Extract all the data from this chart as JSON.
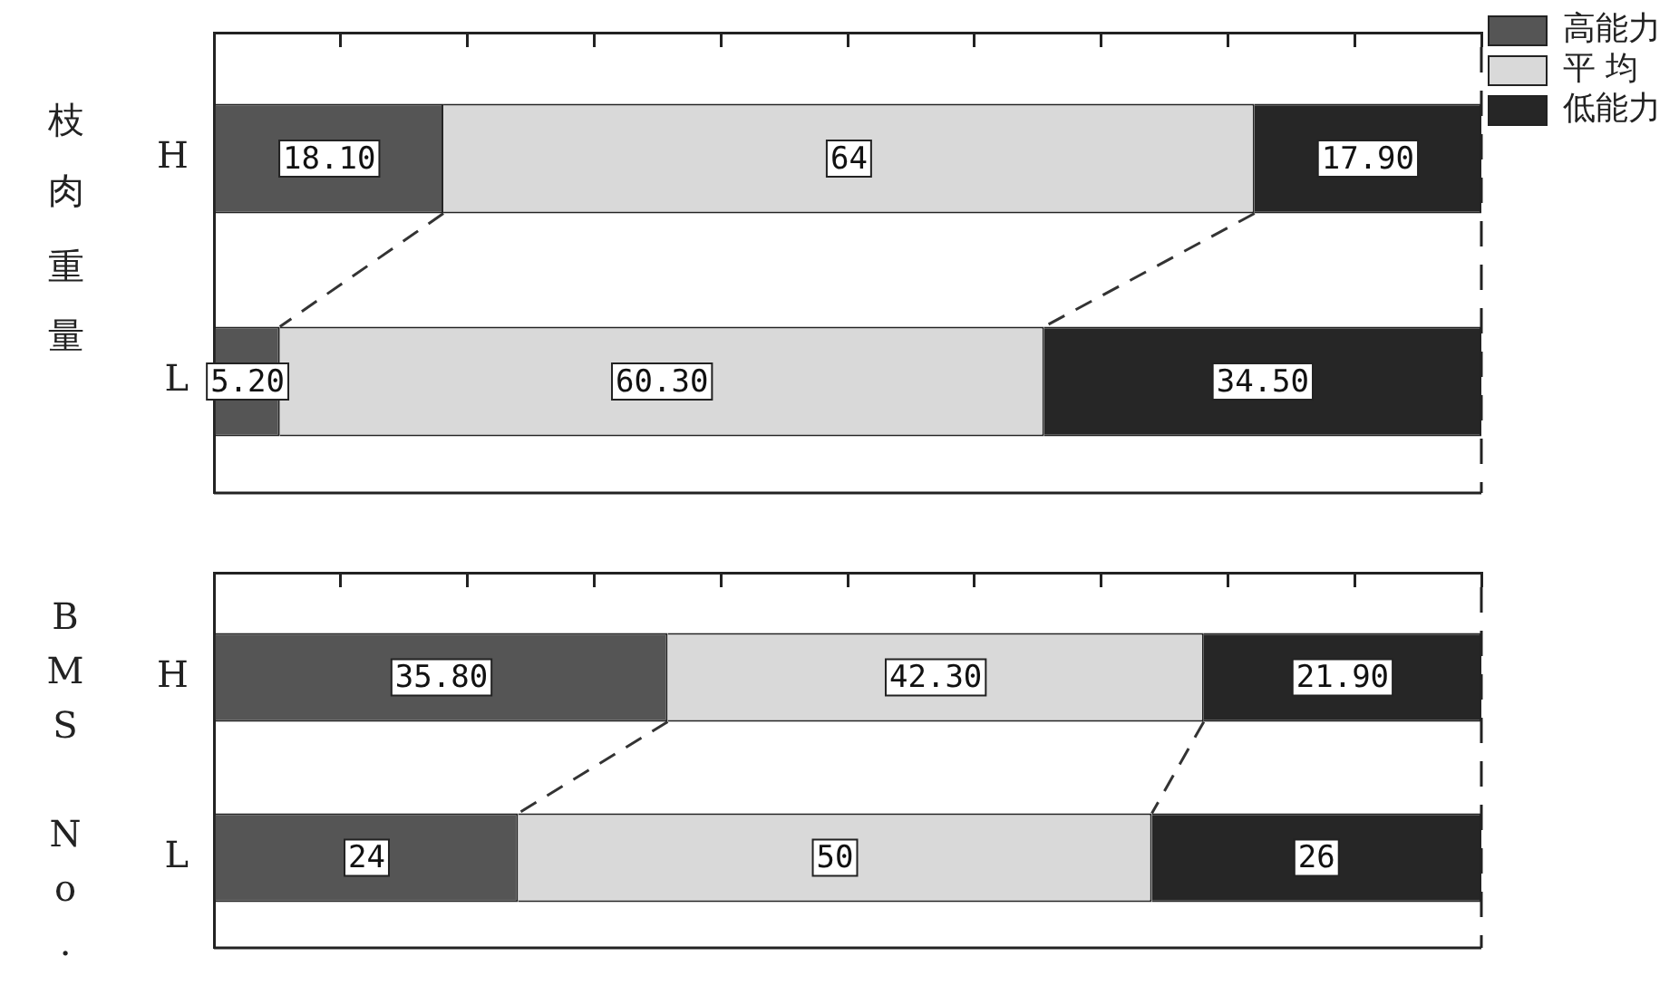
{
  "chart_data": [
    {
      "type": "bar",
      "orientation": "horizontal",
      "stacked": true,
      "ylabel": "枝肉重量",
      "categories": [
        "H",
        "L"
      ],
      "xlim": [
        0,
        100
      ],
      "xticks": [
        {
          "value": 0,
          "label": null
        },
        {
          "value": 10,
          "label": null
        },
        {
          "value": 20,
          "label": null
        },
        {
          "value": 30,
          "label": null
        },
        {
          "value": 40,
          "label": null
        },
        {
          "value": 50,
          "label": null
        },
        {
          "value": 60,
          "label": null
        },
        {
          "value": 70,
          "label": null
        },
        {
          "value": 80,
          "label": null
        },
        {
          "value": 90,
          "label": null
        },
        {
          "value": 100,
          "label": null
        }
      ],
      "tick_labels": "y",
      "grid": false,
      "legend": "top right",
      "series": [
        {
          "name": "高能力",
          "color": "#555555",
          "values": [
            18.1,
            5.2
          ],
          "value_labels": [
            "18.10",
            "5.20"
          ]
        },
        {
          "name": "平 均",
          "color": "#d9d9d9",
          "values": [
            64,
            60.3
          ],
          "value_labels": [
            "64",
            "60.30"
          ]
        },
        {
          "name": "低能力",
          "color": "#262626",
          "values": [
            17.9,
            34.5
          ],
          "value_labels": [
            "17.90",
            "34.50"
          ]
        }
      ]
    },
    {
      "type": "bar",
      "orientation": "horizontal",
      "stacked": true,
      "ylabel": "BMS No.",
      "categories": [
        "H",
        "L"
      ],
      "xlim": [
        0,
        100
      ],
      "xticks": [
        {
          "value": 0,
          "label": null
        },
        {
          "value": 10,
          "label": null
        },
        {
          "value": 20,
          "label": null
        },
        {
          "value": 30,
          "label": null
        },
        {
          "value": 40,
          "label": null
        },
        {
          "value": 50,
          "label": null
        },
        {
          "value": 60,
          "label": null
        },
        {
          "value": 70,
          "label": null
        },
        {
          "value": 80,
          "label": null
        },
        {
          "value": 90,
          "label": null
        },
        {
          "value": 100,
          "label": null
        }
      ],
      "tick_labels": "y",
      "grid": false,
      "legend": false,
      "series": [
        {
          "color": "#555555",
          "values": [
            35.8,
            24
          ],
          "value_labels": [
            "35.80",
            "24"
          ]
        },
        {
          "color": "#d9d9d9",
          "values": [
            42.3,
            50
          ],
          "value_labels": [
            "42.30",
            "50"
          ]
        },
        {
          "color": "#262626",
          "values": [
            21.9,
            26
          ],
          "value_labels": [
            "21.90",
            "26"
          ]
        }
      ]
    }
  ]
}
